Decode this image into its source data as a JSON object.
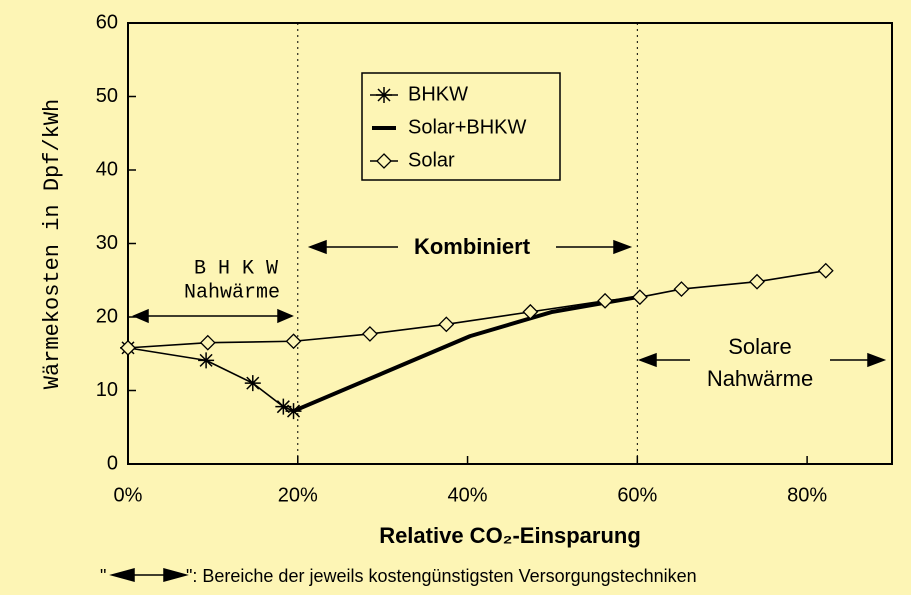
{
  "chart_data": {
    "type": "line",
    "xlabel": "Relative CO₂-Einsparung",
    "ylabel": "Wärmekosten in Dpf/kWh",
    "xlim": [
      0,
      90
    ],
    "ylim": [
      0,
      60
    ],
    "xticks": [
      {
        "value": 0,
        "label": "0%"
      },
      {
        "value": 20,
        "label": "20%"
      },
      {
        "value": 40,
        "label": "40%"
      },
      {
        "value": 60,
        "label": "60%"
      },
      {
        "value": 80,
        "label": "80%"
      }
    ],
    "yticks": [
      0,
      10,
      20,
      30,
      40,
      50,
      60
    ],
    "reference_lines": [
      20,
      60
    ],
    "series": [
      {
        "name": "BHKW",
        "color": "#000000",
        "marker": "asterisk",
        "x": [
          0,
          9.2,
          14.7,
          18.3,
          19.5
        ],
        "values": [
          15.8,
          14.1,
          11.0,
          7.8,
          7.2
        ]
      },
      {
        "name": "Solar+BHKW",
        "color": "#000000",
        "marker": "none",
        "x": [
          19.5,
          40.3,
          50,
          60
        ],
        "values": [
          7.2,
          17.4,
          20.7,
          22.7
        ]
      },
      {
        "name": "Solar",
        "color": "#000000",
        "marker": "diamond",
        "x": [
          0,
          9.4,
          19.5,
          28.5,
          37.5,
          47.4,
          56.2,
          60.3,
          65.2,
          74.1,
          82.2
        ],
        "values": [
          15.8,
          16.5,
          16.7,
          17.7,
          19.0,
          20.7,
          22.2,
          22.7,
          23.8,
          24.8,
          26.3
        ]
      }
    ],
    "annotations": [
      "B H K W",
      "Nahwärme",
      "Kombiniert",
      "Solare",
      "Nahwärme"
    ],
    "footnote": [
      "\"",
      "\": Bereiche der jeweils kostengünstigsten Versorgungstechniken"
    ]
  }
}
